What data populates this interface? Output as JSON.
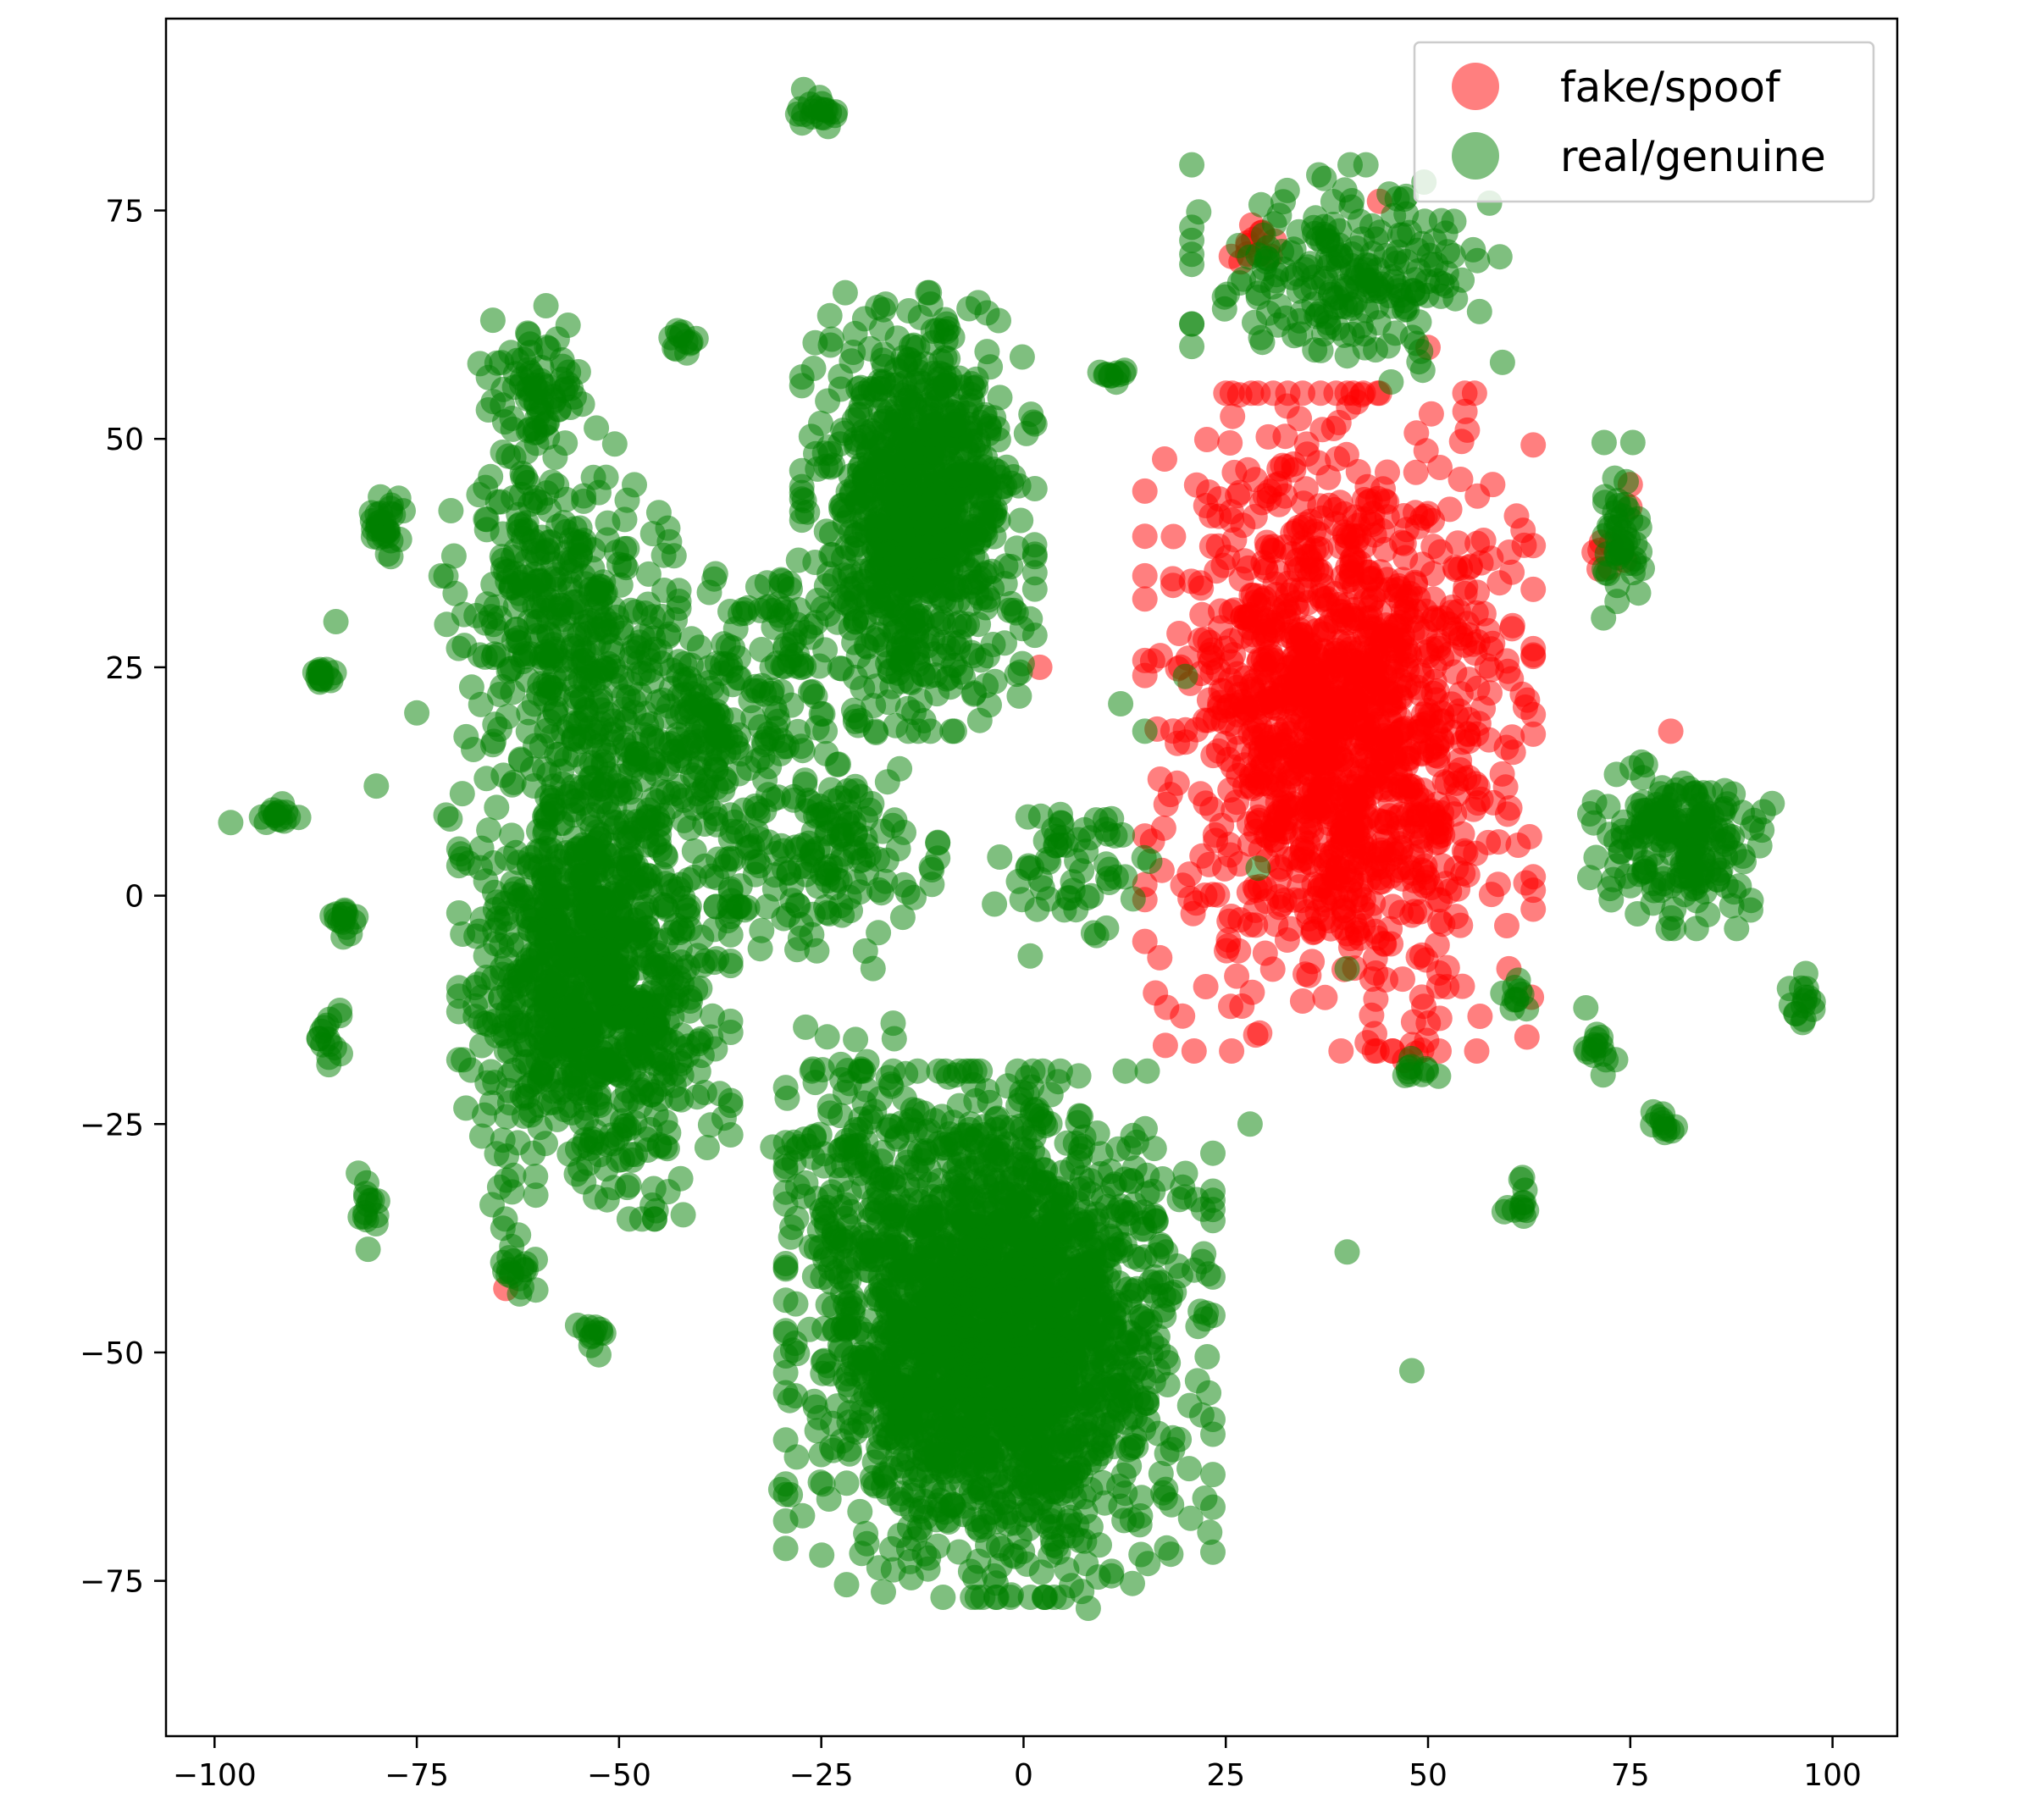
{
  "chart_data": {
    "type": "scatter",
    "title": "",
    "xlabel": "",
    "ylabel": "",
    "xlim": [
      -106,
      108
    ],
    "ylim": [
      -92,
      96
    ],
    "xticks": [
      -100,
      -75,
      -50,
      -25,
      0,
      25,
      50,
      75,
      100
    ],
    "yticks": [
      -75,
      -50,
      -25,
      0,
      25,
      50,
      75
    ],
    "xtick_labels": [
      "−100",
      "−75",
      "−50",
      "−25",
      "0",
      "25",
      "50",
      "75",
      "100"
    ],
    "ytick_labels": [
      "−75",
      "−50",
      "−25",
      "0",
      "25",
      "50",
      "75"
    ],
    "grid": false,
    "legend_position": "top-right",
    "marker_alpha": 0.5,
    "series": [
      {
        "name": "fake/spoof",
        "color": "#ff0000",
        "clusters": [
          {
            "center": [
              39,
              19
            ],
            "spread": [
              10,
              15
            ],
            "count": 1400
          },
          {
            "center": [
              29,
              71
            ],
            "spread": [
              2,
              1
            ],
            "count": 12
          },
          {
            "center": [
              72,
              38
            ],
            "spread": [
              1.5,
              2
            ],
            "count": 8
          },
          {
            "center": [
              48,
              -17
            ],
            "spread": [
              1,
              1
            ],
            "count": 5
          }
        ],
        "points": [
          [
            50,
            60
          ],
          [
            44,
            76
          ],
          [
            58,
            45
          ],
          [
            2,
            25
          ],
          [
            75,
            45
          ],
          [
            80,
            18
          ],
          [
            60,
            -8
          ],
          [
            -64,
            -43
          ]
        ]
      },
      {
        "name": "real/genuine",
        "color": "#008000",
        "clusters": [
          {
            "center": [
              -3,
              -48
            ],
            "spread": [
              11,
              12
            ],
            "count": 2200
          },
          {
            "center": [
              -13,
              42
            ],
            "spread": [
              6,
              10
            ],
            "count": 900
          },
          {
            "center": [
              -53,
              -9
            ],
            "spread": [
              7,
              11
            ],
            "count": 1000
          },
          {
            "center": [
              -57,
              30
            ],
            "spread": [
              6,
              9
            ],
            "count": 350
          },
          {
            "center": [
              -40,
              18
            ],
            "spread": [
              8,
              8
            ],
            "count": 300
          },
          {
            "center": [
              -25,
              5
            ],
            "spread": [
              6,
              6
            ],
            "count": 150
          },
          {
            "center": [
              -60,
              55
            ],
            "spread": [
              3,
              4
            ],
            "count": 80
          },
          {
            "center": [
              40,
              68
            ],
            "spread": [
              8,
              5
            ],
            "count": 220
          },
          {
            "center": [
              82,
              6
            ],
            "spread": [
              5,
              4
            ],
            "count": 200
          },
          {
            "center": [
              74,
              40
            ],
            "spread": [
              1.5,
              4
            ],
            "count": 50
          },
          {
            "center": [
              -79,
              41
            ],
            "spread": [
              1,
              2
            ],
            "count": 30
          },
          {
            "center": [
              -87,
              24
            ],
            "spread": [
              1,
              0.5
            ],
            "count": 15
          },
          {
            "center": [
              -92,
              9
            ],
            "spread": [
              1,
              0.5
            ],
            "count": 15
          },
          {
            "center": [
              -84,
              -3
            ],
            "spread": [
              1,
              1
            ],
            "count": 15
          },
          {
            "center": [
              -86,
              -15
            ],
            "spread": [
              1,
              1.5
            ],
            "count": 15
          },
          {
            "center": [
              -81,
              -34
            ],
            "spread": [
              0.7,
              2
            ],
            "count": 15
          },
          {
            "center": [
              -63,
              -40
            ],
            "spread": [
              1.5,
              1.5
            ],
            "count": 20
          },
          {
            "center": [
              -53,
              -48
            ],
            "spread": [
              1,
              1
            ],
            "count": 12
          },
          {
            "center": [
              -26,
              86
            ],
            "spread": [
              1.5,
              1
            ],
            "count": 20
          },
          {
            "center": [
              -42,
              61
            ],
            "spread": [
              1,
              1
            ],
            "count": 12
          },
          {
            "center": [
              11,
              57
            ],
            "spread": [
              1,
              0.5
            ],
            "count": 10
          },
          {
            "center": [
              -29,
              29
            ],
            "spread": [
              2,
              4
            ],
            "count": 30
          },
          {
            "center": [
              61,
              -11
            ],
            "spread": [
              1,
              1
            ],
            "count": 10
          },
          {
            "center": [
              49,
              -19
            ],
            "spread": [
              1,
              0.5
            ],
            "count": 10
          },
          {
            "center": [
              61,
              -34
            ],
            "spread": [
              1,
              1.5
            ],
            "count": 12
          },
          {
            "center": [
              79,
              -25
            ],
            "spread": [
              0.7,
              1
            ],
            "count": 12
          },
          {
            "center": [
              96,
              -12
            ],
            "spread": [
              1,
              1.5
            ],
            "count": 15
          },
          {
            "center": [
              71,
              -17
            ],
            "spread": [
              1.5,
              2
            ],
            "count": 15
          },
          {
            "center": [
              6,
              3
            ],
            "spread": [
              4,
              4
            ],
            "count": 60
          },
          {
            "center": [
              -22,
              -28
            ],
            "spread": [
              4,
              6
            ],
            "count": 80
          }
        ],
        "points": [
          [
            12,
            21
          ],
          [
            20,
            24
          ],
          [
            15,
            18
          ],
          [
            29,
            3
          ],
          [
            40,
            -8
          ],
          [
            -75,
            20
          ],
          [
            -80,
            12
          ],
          [
            -98,
            8
          ],
          [
            -85,
            30
          ],
          [
            -68,
            16
          ],
          [
            -72,
            35
          ],
          [
            -49,
            38
          ],
          [
            -20,
            -52
          ],
          [
            -30,
            -65
          ],
          [
            40,
            -39
          ],
          [
            48,
            -52
          ],
          [
            28,
            -25
          ],
          [
            8,
            -78
          ],
          [
            -20,
            -72
          ]
        ]
      }
    ]
  }
}
